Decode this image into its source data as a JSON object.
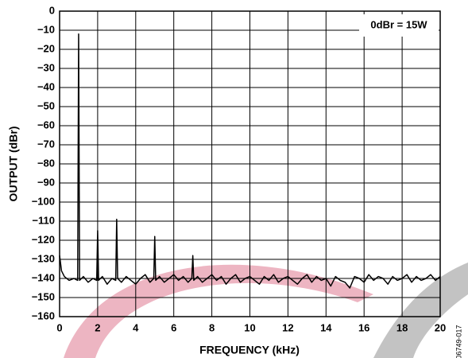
{
  "chart_data": {
    "type": "line",
    "title": null,
    "xlabel": "FREQUENCY (kHz)",
    "ylabel": "OUTPUT (dBr)",
    "annotation": "0dBr = 15W",
    "figure_id": "06749-017",
    "xlim": [
      0,
      20
    ],
    "xticks": [
      0,
      2,
      4,
      6,
      8,
      10,
      12,
      14,
      16,
      18,
      20
    ],
    "ylim": [
      -160,
      0
    ],
    "yticks": [
      0,
      {
        "value": -10,
        "label": "−10"
      },
      {
        "value": -20,
        "label": "−20"
      },
      {
        "value": -30,
        "label": "−30"
      },
      {
        "value": -40,
        "label": "−40"
      },
      {
        "value": -50,
        "label": "−50"
      },
      {
        "value": -60,
        "label": "−60"
      },
      {
        "value": -70,
        "label": "−70"
      },
      {
        "value": -80,
        "label": "−80"
      },
      {
        "value": -90,
        "label": "−90"
      },
      {
        "value": -100,
        "label": "−100"
      },
      {
        "value": -110,
        "label": "−110"
      },
      {
        "value": -120,
        "label": "−120"
      },
      {
        "value": -130,
        "label": "−130"
      },
      {
        "value": -140,
        "label": "−140"
      },
      {
        "value": -150,
        "label": "−150"
      },
      {
        "value": -160,
        "label": "−160"
      }
    ],
    "grid": true,
    "series": [
      {
        "color": "#000000",
        "x": [
          0,
          0.1,
          0.25,
          0.5,
          0.75,
          0.95,
          1,
          1.05,
          1.25,
          1.5,
          1.75,
          1.95,
          2,
          2.05,
          2.25,
          2.5,
          2.75,
          2.95,
          3,
          3.05,
          3.25,
          3.5,
          3.75,
          4,
          4.25,
          4.5,
          4.75,
          4.95,
          5,
          5.05,
          5.25,
          5.5,
          5.75,
          6,
          6.25,
          6.5,
          6.75,
          6.95,
          7,
          7.05,
          7.25,
          7.5,
          7.75,
          8,
          8.25,
          8.5,
          8.75,
          9,
          9.25,
          9.5,
          9.75,
          10,
          10.25,
          10.5,
          10.75,
          11,
          11.25,
          11.5,
          11.75,
          12,
          12.25,
          12.5,
          12.75,
          13,
          13.25,
          13.5,
          13.75,
          14,
          14.25,
          14.5,
          14.75,
          15,
          15.25,
          15.5,
          15.75,
          16,
          16.25,
          16.5,
          16.75,
          17,
          17.25,
          17.5,
          17.75,
          18,
          18.25,
          18.5,
          18.75,
          19,
          19.25,
          19.5,
          19.75,
          20
        ],
        "values": [
          -128,
          -136,
          -139,
          -141,
          -140,
          -141,
          -12,
          -141,
          -139,
          -142,
          -140,
          -141,
          -115,
          -141,
          -139,
          -143,
          -140,
          -141,
          -109,
          -140,
          -142,
          -139,
          -141,
          -143,
          -140,
          -138,
          -142,
          -140,
          -118,
          -141,
          -139,
          -142,
          -140,
          -138,
          -141,
          -139,
          -142,
          -140,
          -128,
          -141,
          -139,
          -142,
          -140,
          -138,
          -141,
          -139,
          -143,
          -140,
          -138,
          -142,
          -140,
          -139,
          -141,
          -143,
          -139,
          -141,
          -138,
          -142,
          -140,
          -139,
          -141,
          -143,
          -140,
          -138,
          -142,
          -139,
          -141,
          -140,
          -144,
          -139,
          -141,
          -142,
          -145,
          -139,
          -140,
          -142,
          -138,
          -141,
          -139,
          -140,
          -143,
          -139,
          -141,
          -140,
          -138,
          -142,
          -139,
          -141,
          -140,
          -138,
          -141,
          -139
        ]
      }
    ]
  }
}
